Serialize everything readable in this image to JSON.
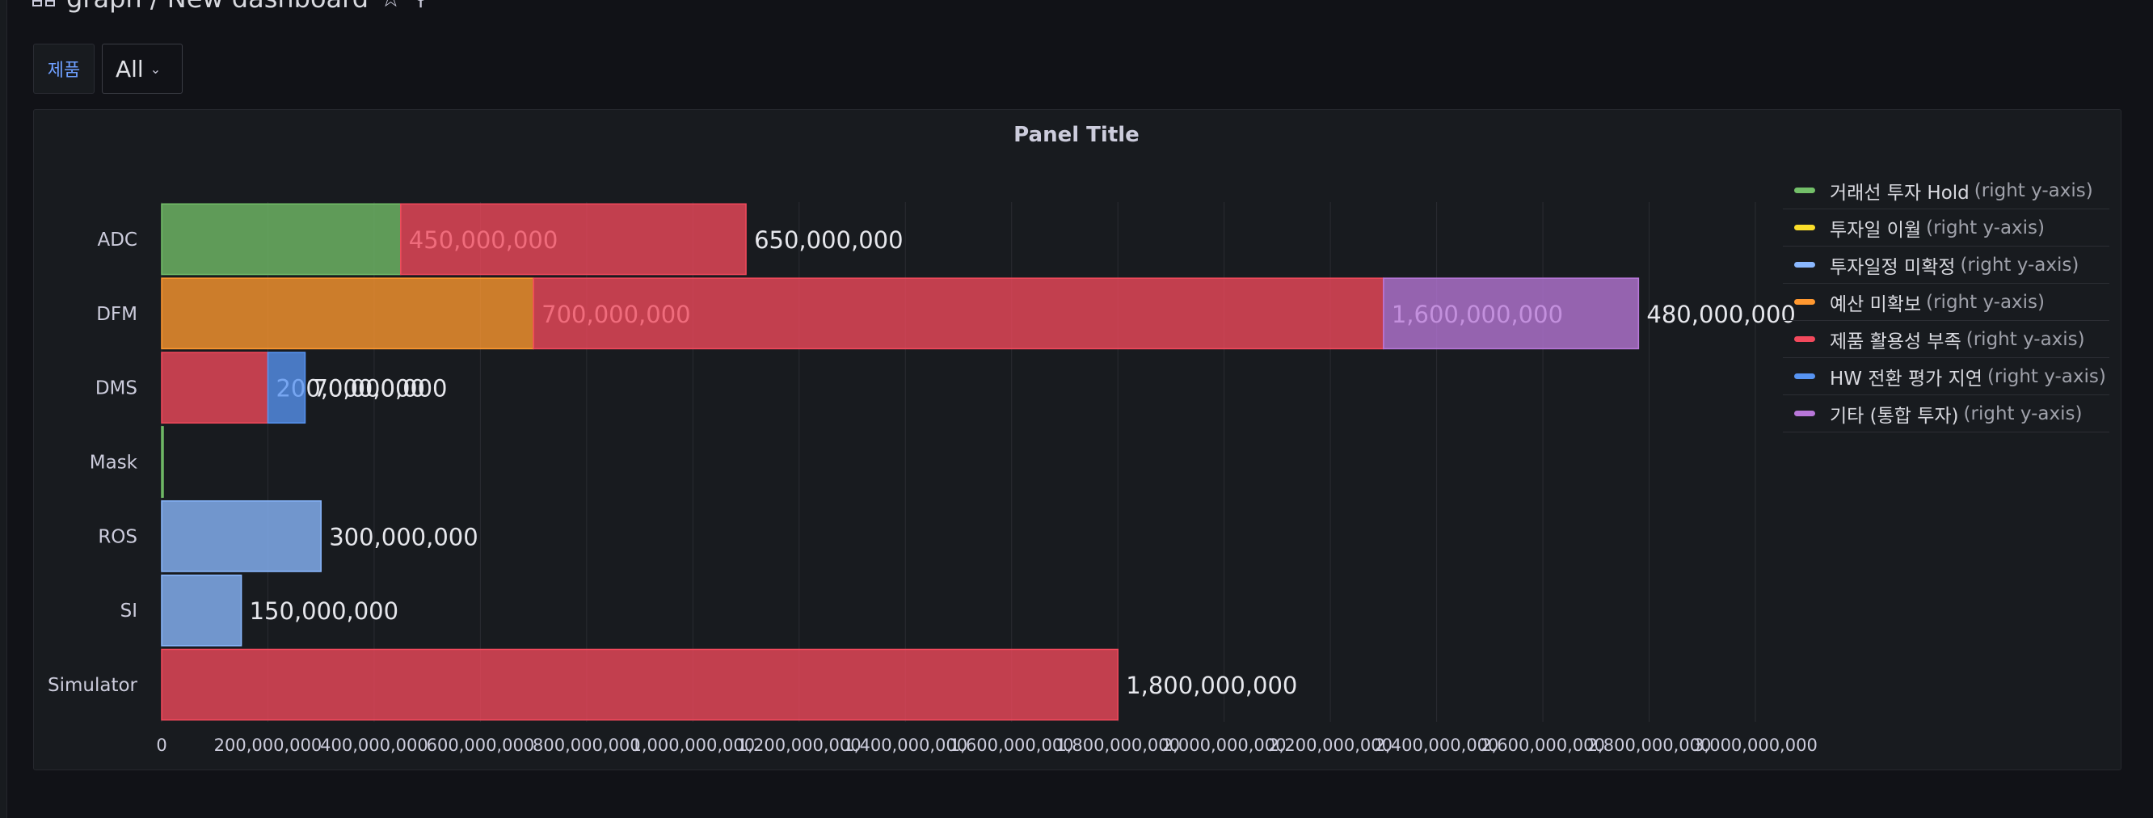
{
  "header": {
    "title": "graph / New dashboard"
  },
  "variable": {
    "label": "제품",
    "value": "All"
  },
  "panel": {
    "title": "Panel Title"
  },
  "legend": {
    "suffix": "(right y-axis)",
    "items": [
      {
        "label": "거래선 투자 Hold",
        "color": "#73bf69"
      },
      {
        "label": "투자일 이월",
        "color": "#fade2a"
      },
      {
        "label": "투자일정 미확정",
        "color": "#8ab8ff"
      },
      {
        "label": "예산 미확보",
        "color": "#ff9830"
      },
      {
        "label": "제품 활용성 부족",
        "color": "#f2495c"
      },
      {
        "label": "HW 전환 평가 지연",
        "color": "#5794f2"
      },
      {
        "label": "기타 (통합 투자)",
        "color": "#b877d9"
      }
    ]
  },
  "chart_data": {
    "type": "bar",
    "orientation": "horizontal",
    "stacked": true,
    "title": "Panel Title",
    "categories": [
      "ADC",
      "DFM",
      "DMS",
      "Mask",
      "ROS",
      "SI",
      "Simulator"
    ],
    "xlim": [
      0,
      3000000000
    ],
    "x_ticks": [
      0,
      200000000,
      400000000,
      600000000,
      800000000,
      1000000000,
      1200000000,
      1400000000,
      1600000000,
      1800000000,
      2000000000,
      2200000000,
      2400000000,
      2600000000,
      2800000000,
      3000000000
    ],
    "x_tick_labels": [
      "0",
      "200,000,000",
      "400,000,000",
      "600,000,000",
      "800,000,000",
      "1,000,000,000",
      "1,200,000,000",
      "1,400,000,000",
      "1,600,000,000",
      "1,800,000,000",
      "2,000,000,000",
      "2,200,000,000",
      "2,400,000,000",
      "2,600,000,000",
      "2,800,000,000",
      "3,000,000,000"
    ],
    "grid": true,
    "legend_position": "right",
    "bars": [
      {
        "category": "ADC",
        "segments": [
          {
            "series": "거래선 투자 Hold",
            "value": 450000000,
            "label": "450,000,000"
          },
          {
            "series": "제품 활용성 부족",
            "value": 650000000,
            "label": "650,000,000"
          }
        ]
      },
      {
        "category": "DFM",
        "segments": [
          {
            "series": "예산 미확보",
            "value": 700000000,
            "label": "700,000,000"
          },
          {
            "series": "제품 활용성 부족",
            "value": 1600000000,
            "label": "1,600,000,000"
          },
          {
            "series": "기타 (통합 투자)",
            "value": 480000000,
            "label": "480,000,000"
          }
        ]
      },
      {
        "category": "DMS",
        "segments": [
          {
            "series": "제품 활용성 부족",
            "value": 200000000,
            "label": "200,000,000"
          },
          {
            "series": "HW 전환 평가 지연",
            "value": 70000000,
            "label": "70,000,000"
          }
        ]
      },
      {
        "category": "Mask",
        "segments": [
          {
            "series": "거래선 투자 Hold",
            "value": 3000000,
            "label": ""
          }
        ]
      },
      {
        "category": "ROS",
        "segments": [
          {
            "series": "투자일정 미확정",
            "value": 300000000,
            "label": "300,000,000"
          }
        ]
      },
      {
        "category": "SI",
        "segments": [
          {
            "series": "투자일정 미확정",
            "value": 150000000,
            "label": "150,000,000"
          }
        ]
      },
      {
        "category": "Simulator",
        "segments": [
          {
            "series": "제품 활용성 부족",
            "value": 1800000000,
            "label": "1,800,000,000"
          }
        ]
      }
    ]
  }
}
